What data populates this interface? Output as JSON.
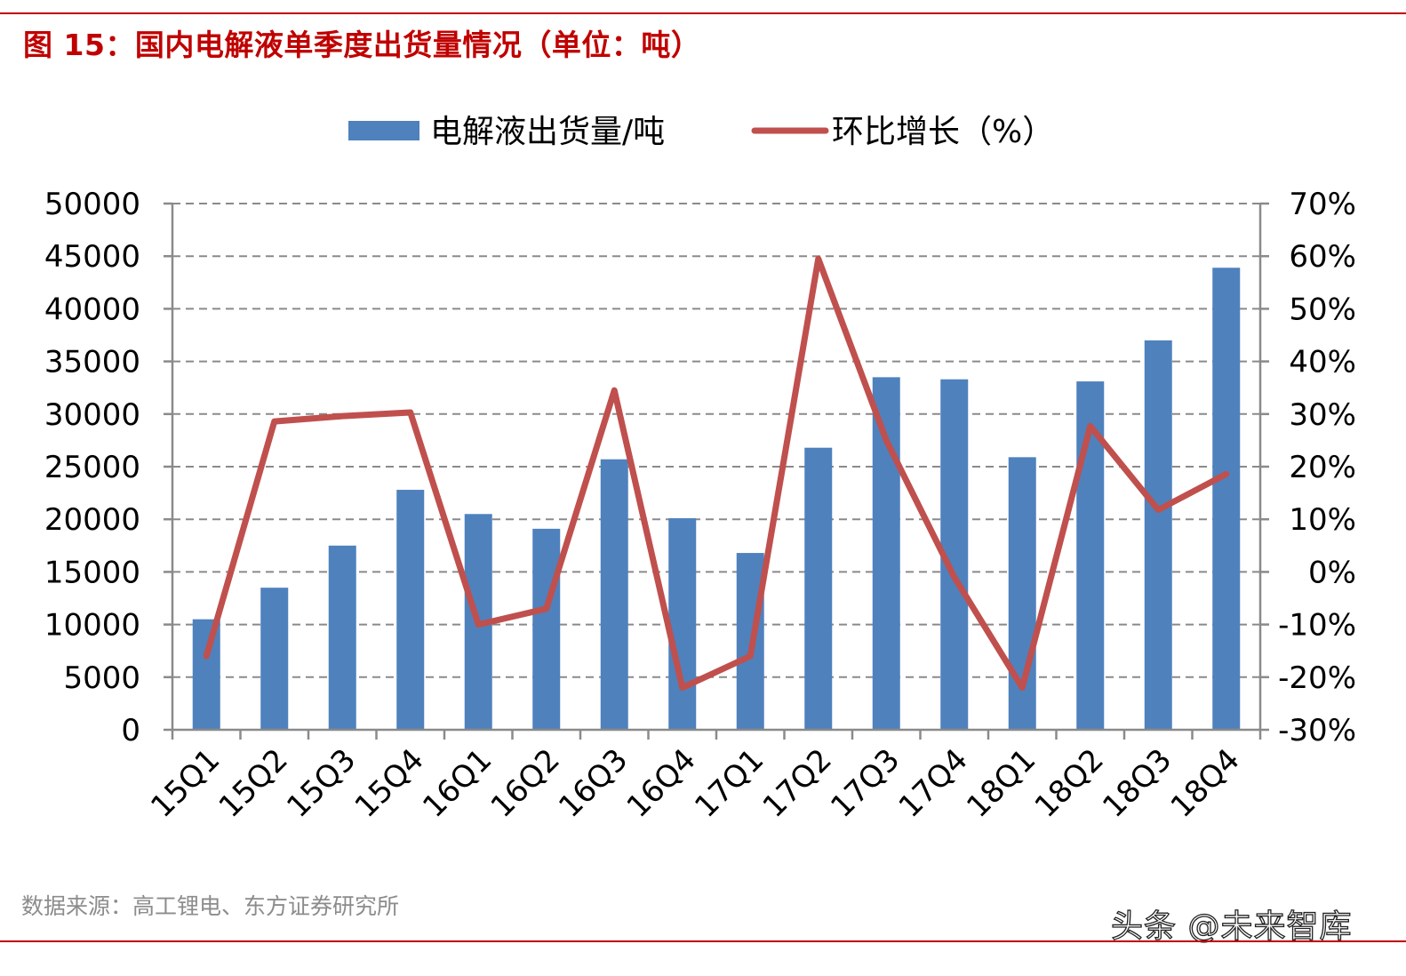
{
  "title": "图 15：国内电解液单季度出货量情况（单位：吨）",
  "source": "数据来源：高工锂电、东方证券研究所",
  "watermark": "头条 @未来智库",
  "chart_data": {
    "type": "bar",
    "categories": [
      "15Q1",
      "15Q2",
      "15Q3",
      "15Q4",
      "16Q1",
      "16Q2",
      "16Q3",
      "16Q4",
      "17Q1",
      "17Q2",
      "17Q3",
      "17Q4",
      "18Q1",
      "18Q2",
      "18Q3",
      "18Q4"
    ],
    "series": [
      {
        "name": "电解液出货量/吨",
        "type": "bar",
        "axis": "left",
        "color": "#4f81bd",
        "values": [
          10500,
          13500,
          17500,
          22800,
          20500,
          19100,
          25700,
          20100,
          16800,
          26800,
          33500,
          33300,
          25900,
          33100,
          37000,
          43900
        ]
      },
      {
        "name": "环比增长（%）",
        "type": "line",
        "axis": "right",
        "color": "#c0504d",
        "values": [
          -16,
          28.6,
          29.6,
          30.3,
          -10,
          -7,
          34.5,
          -22,
          -16,
          59.5,
          25,
          -1,
          -22,
          27.7,
          11.8,
          18.6
        ]
      }
    ],
    "y_left": {
      "min": 0,
      "max": 50000,
      "ticks": [
        "0",
        "5000",
        "10000",
        "15000",
        "20000",
        "25000",
        "30000",
        "35000",
        "40000",
        "45000",
        "50000"
      ]
    },
    "y_right": {
      "min": -30,
      "max": 70,
      "ticks": [
        "-30%",
        "-20%",
        "-10%",
        "0%",
        "10%",
        "20%",
        "30%",
        "40%",
        "50%",
        "60%",
        "70%"
      ]
    },
    "grid": "horizontal dashed",
    "legend": "top-center"
  }
}
